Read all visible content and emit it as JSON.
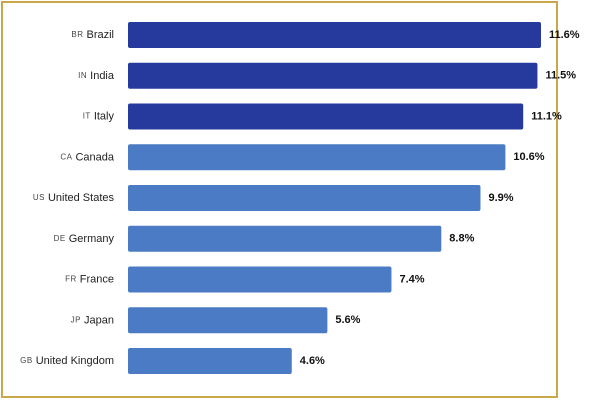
{
  "chart_data": {
    "type": "hbar",
    "codes": [
      "BR",
      "IN",
      "IT",
      "CA",
      "US",
      "DE",
      "FR",
      "JP",
      "GB"
    ],
    "categories": [
      "Brazil",
      "India",
      "Italy",
      "Canada",
      "United States",
      "Germany",
      "France",
      "Japan",
      "United Kingdom"
    ],
    "values": [
      11.6,
      11.5,
      11.1,
      10.6,
      9.9,
      8.8,
      7.4,
      5.6,
      4.6
    ],
    "value_labels": [
      "11.6%",
      "11.5%",
      "11.1%",
      "10.6%",
      "9.9%",
      "8.8%",
      "7.4%",
      "5.6%",
      "4.6%"
    ],
    "colors": [
      "#253a9c",
      "#253a9c",
      "#253a9c",
      "#4a7bc4",
      "#4a7bc4",
      "#4a7bc4",
      "#4a7bc4",
      "#4a7bc4",
      "#4a7bc4"
    ]
  }
}
